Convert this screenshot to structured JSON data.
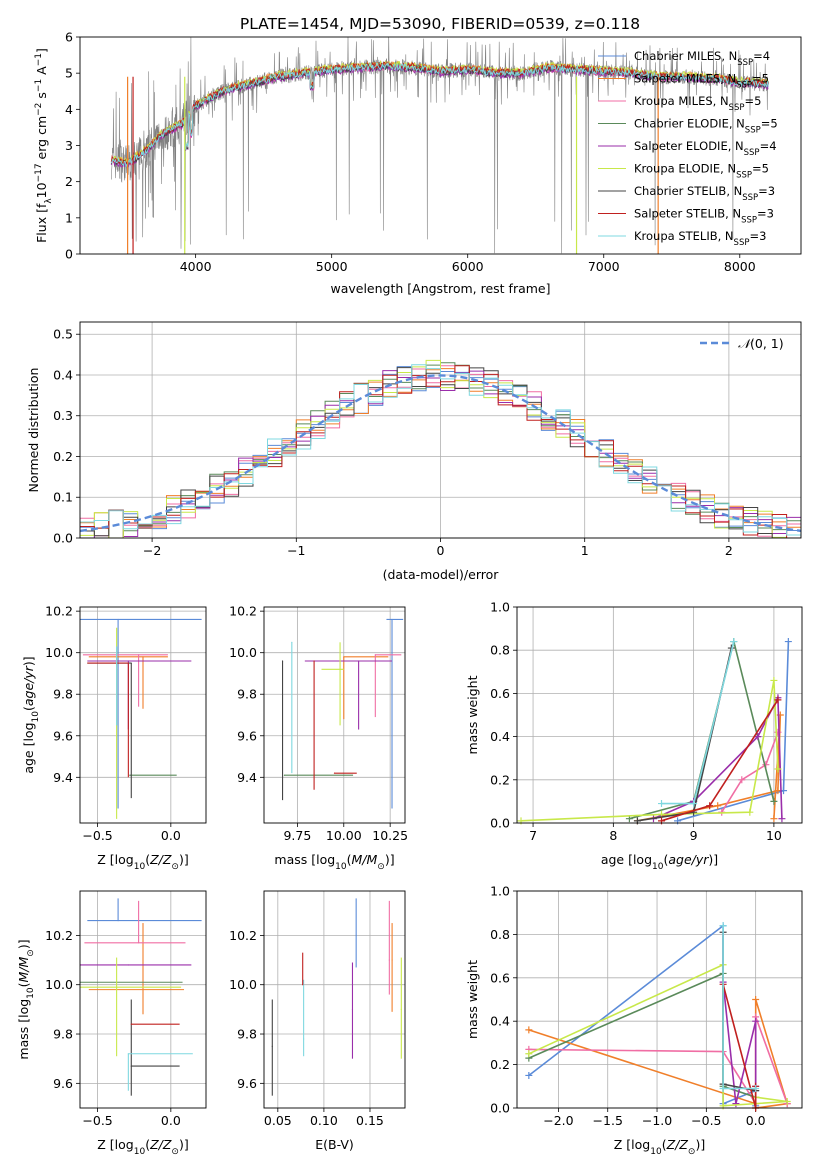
{
  "figure": {
    "title": "PLATE=1454, MJD=53090, FIBERID=0539, z=0.118"
  },
  "series": [
    {
      "key": "chab_miles",
      "label": "Chabrier MILES, N_SSP=4",
      "base": "Chabrier MILES, N",
      "sub": "SSP",
      "tail": "=4",
      "color": "#5b8bd8"
    },
    {
      "key": "salp_miles",
      "label": "Salpeter MILES, N_SSP=5",
      "base": "Salpeter MILES, N",
      "sub": "SSP",
      "tail": "=5",
      "color": "#f07f2a"
    },
    {
      "key": "krou_miles",
      "label": "Kroupa MILES, N_SSP=5",
      "base": "Kroupa MILES, N",
      "sub": "SSP",
      "tail": "=5",
      "color": "#f06ea4"
    },
    {
      "key": "chab_elodie",
      "label": "Chabrier ELODIE, N_SSP=5",
      "base": "Chabrier ELODIE, N",
      "sub": "SSP",
      "tail": "=5",
      "color": "#5a8a5a"
    },
    {
      "key": "salp_elodie",
      "label": "Salpeter ELODIE, N_SSP=4",
      "base": "Salpeter ELODIE, N",
      "sub": "SSP",
      "tail": "=4",
      "color": "#9a2eaa"
    },
    {
      "key": "krou_elodie",
      "label": "Kroupa ELODIE, N_SSP=5",
      "base": "Kroupa ELODIE, N",
      "sub": "SSP",
      "tail": "=5",
      "color": "#c8e84a"
    },
    {
      "key": "chab_stelib",
      "label": "Chabrier STELIB, N_SSP=3",
      "base": "Chabrier STELIB, N",
      "sub": "SSP",
      "tail": "=3",
      "color": "#444444"
    },
    {
      "key": "salp_stelib",
      "label": "Salpeter STELIB, N_SSP=3",
      "base": "Salpeter STELIB, N",
      "sub": "SSP",
      "tail": "=3",
      "color": "#c0201f"
    },
    {
      "key": "krou_stelib",
      "label": "Kroupa STELIB, N_SSP=3",
      "base": "Kroupa STELIB, N",
      "sub": "SSP",
      "tail": "=3",
      "color": "#7fd8e0"
    }
  ],
  "chart_data": [
    {
      "id": "spectrum",
      "type": "line",
      "xlabel": "wavelength [Angstrom, rest frame]",
      "ylabel": "Flux [f_λ 10^-17 erg cm^-2 s^-1 A^-1]",
      "ylabel_parts": {
        "a": "Flux [f",
        "a_sub": "λ",
        "b": "10",
        "b_sup": "−17",
        "c": " erg cm",
        "c_sup": "−2",
        "d": " s",
        "d_sup": "−1",
        "e": " A",
        "e_sup": "−1",
        "f": "]"
      },
      "xlim": [
        3150,
        8450
      ],
      "ylim": [
        0,
        6
      ],
      "xticks": [
        4000,
        5000,
        6000,
        7000,
        8000
      ],
      "yticks": [
        0,
        1,
        2,
        3,
        4,
        5,
        6
      ],
      "grid": false,
      "legend": "upper right",
      "data_color": "#808080",
      "continuum": {
        "x": [
          3380,
          3500,
          3650,
          3750,
          3900,
          4000,
          4200,
          4400,
          4600,
          4800,
          5000,
          5200,
          5400,
          5600,
          5800,
          6000,
          6200,
          6400,
          6600,
          6800,
          7000,
          7200,
          7400,
          7600,
          7800,
          8000,
          8200
        ],
        "y": [
          2.6,
          2.5,
          2.9,
          3.3,
          3.6,
          4.1,
          4.5,
          4.7,
          4.9,
          5.0,
          5.1,
          5.15,
          5.2,
          5.15,
          5.05,
          5.1,
          5.0,
          5.0,
          5.15,
          5.1,
          5.05,
          5.0,
          4.9,
          4.9,
          4.85,
          4.75,
          4.7
        ]
      },
      "wavelength_range": [
        3380,
        8210
      ]
    },
    {
      "id": "residuals",
      "type": "histogram",
      "xlabel": "(data-model)/error",
      "ylabel": "Normed distribution",
      "xlim": [
        -2.5,
        2.5
      ],
      "ylim": [
        0,
        0.53
      ],
      "xticks": [
        -2,
        -1,
        0,
        1,
        2
      ],
      "yticks": [
        0.0,
        0.1,
        0.2,
        0.3,
        0.4,
        0.5
      ],
      "grid": true,
      "legend": "upper right",
      "reference": {
        "label": "N(0,1)",
        "label_italic": "𝒩",
        "label_rest": "(0, 1)",
        "color": "#5b8bd8",
        "mean": 0,
        "sigma": 1
      },
      "bin_width": 0.1
    },
    {
      "id": "age_vs_Z",
      "type": "scatter",
      "xlabel": "Z [log10(Z/Z⊙)]",
      "ylabel": "age [log10(age/yr)]",
      "xlim": [
        -0.62,
        0.24
      ],
      "ylim": [
        9.18,
        10.22
      ],
      "xticks": [
        -0.5,
        0.0
      ],
      "xticklabels": [
        "−0.5",
        "0.0"
      ],
      "yticks": [
        9.4,
        9.6,
        9.8,
        10.0,
        10.2
      ],
      "grid": true,
      "points": [
        {
          "series": "chab_miles",
          "x": -0.36,
          "xerr": [
            0.59,
            0.57
          ],
          "y": 10.16,
          "yerr": [
            0.91,
            0.0
          ]
        },
        {
          "series": "salp_miles",
          "x": -0.19,
          "xerr": [
            0.37,
            0.17
          ],
          "y": 9.98,
          "yerr": [
            0.25,
            0.0
          ]
        },
        {
          "series": "krou_miles",
          "x": -0.22,
          "xerr": [
            0.38,
            0.2
          ],
          "y": 9.99,
          "yerr": [
            0.25,
            0.0
          ]
        },
        {
          "series": "chab_elodie",
          "x": -0.28,
          "xerr": [
            0.0,
            0.32
          ],
          "y": 9.41,
          "yerr": [
            0.0,
            0.0
          ]
        },
        {
          "series": "salp_elodie",
          "x": -0.29,
          "xerr": [
            0.28,
            0.43
          ],
          "y": 9.96,
          "yerr": [
            0.33,
            0.0
          ]
        },
        {
          "series": "krou_elodie",
          "x": -0.37,
          "xerr": [
            0.0,
            0.0
          ],
          "y": 9.92,
          "yerr": [
            0.72,
            0.2
          ]
        },
        {
          "series": "chab_stelib",
          "x": -0.27,
          "xerr": [
            0.3,
            0.0
          ],
          "y": 9.95,
          "yerr": [
            0.65,
            0.0
          ]
        },
        {
          "series": "salp_stelib",
          "x": -0.29,
          "xerr": [
            0.28,
            0.0
          ],
          "y": 9.95,
          "yerr": [
            0.55,
            0.0
          ]
        },
        {
          "series": "krou_stelib",
          "x": -0.37,
          "xerr": [
            0.0,
            0.0
          ],
          "y": 9.95,
          "yerr": [
            0.3,
            0.08
          ]
        }
      ]
    },
    {
      "id": "age_vs_mass",
      "type": "scatter",
      "xlabel": "mass [log10(M/M⊙)]",
      "xlim": [
        9.57,
        10.33
      ],
      "ylim": [
        9.18,
        10.22
      ],
      "xticks": [
        9.75,
        10.0,
        10.25
      ],
      "xticklabels": [
        "9.75",
        "10.00",
        "10.25"
      ],
      "yticks": [
        9.4,
        9.6,
        9.8,
        10.0,
        10.2
      ],
      "grid": true,
      "points": [
        {
          "series": "chab_miles",
          "x": 10.26,
          "xerr": [
            0.03,
            0.06
          ],
          "y": 10.16,
          "yerr": [
            0.91,
            0.0
          ]
        },
        {
          "series": "salp_miles",
          "x": 10.0,
          "xerr": [
            0.0,
            0.24
          ],
          "y": 9.98,
          "yerr": [
            0.3,
            0.0
          ]
        },
        {
          "series": "krou_miles",
          "x": 10.17,
          "xerr": [
            0.0,
            0.14
          ],
          "y": 9.99,
          "yerr": [
            0.3,
            0.0
          ]
        },
        {
          "series": "chab_elodie",
          "x": 9.68,
          "xerr": [
            0.0,
            0.37
          ],
          "y": 9.41,
          "yerr": [
            0.0,
            0.0
          ]
        },
        {
          "series": "salp_elodie",
          "x": 10.08,
          "xerr": [
            0.29,
            0.18
          ],
          "y": 9.96,
          "yerr": [
            0.33,
            0.0
          ]
        },
        {
          "series": "krou_elodie",
          "x": 9.98,
          "xerr": [
            0.1,
            0.02
          ],
          "y": 9.92,
          "yerr": [
            0.27,
            0.13
          ]
        },
        {
          "series": "chab_stelib",
          "x": 9.67,
          "xerr": [
            0.0,
            0.0
          ],
          "y": 9.96,
          "yerr": [
            0.67,
            0.0
          ]
        },
        {
          "series": "salp_stelib",
          "x": 9.84,
          "xerr": [
            0.0,
            0.0
          ],
          "y": 9.96,
          "yerr": [
            0.62,
            0.0
          ]
        },
        {
          "series": "krou_stelib",
          "x": 9.72,
          "xerr": [
            0.0,
            0.0
          ],
          "y": 10.05,
          "yerr": [
            0.63,
            0.0
          ]
        },
        {
          "series": "salp_stelib",
          "x": 9.95,
          "xerr": [
            0.0,
            0.12
          ],
          "y": 9.42,
          "yerr": [
            0.0,
            0.0
          ]
        }
      ]
    },
    {
      "id": "weights_vs_age",
      "type": "line",
      "xlabel": "age [log10(age/yr)]",
      "ylabel": "mass weight",
      "xlim": [
        6.8,
        10.35
      ],
      "ylim": [
        0,
        1.0
      ],
      "xticks": [
        7,
        8,
        9,
        10
      ],
      "yticks": [
        0.0,
        0.2,
        0.4,
        0.6,
        0.8,
        1.0
      ],
      "grid": true,
      "series_points": [
        {
          "series": "chab_miles",
          "x": [
            8.8,
            10.12,
            10.18
          ],
          "y": [
            0.01,
            0.15,
            0.84
          ]
        },
        {
          "series": "salp_miles",
          "x": [
            8.3,
            9.3,
            10.05,
            10.08,
            10.0
          ],
          "y": [
            0.01,
            0.08,
            0.15,
            0.5,
            0.02
          ]
        },
        {
          "series": "krou_miles",
          "x": [
            9.35,
            9.6,
            9.9,
            10.05
          ],
          "y": [
            0.05,
            0.2,
            0.27,
            0.42
          ]
        },
        {
          "series": "chab_elodie",
          "x": [
            8.2,
            9.0,
            9.5,
            10.0
          ],
          "y": [
            0.02,
            0.1,
            0.84,
            0.1
          ]
        },
        {
          "series": "salp_elodie",
          "x": [
            8.5,
            9.0,
            9.8,
            10.05,
            10.1
          ],
          "y": [
            0.02,
            0.1,
            0.4,
            0.58,
            0.02
          ]
        },
        {
          "series": "krou_elodie",
          "x": [
            6.85,
            8.6,
            9.7,
            10.0,
            10.05
          ],
          "y": [
            0.01,
            0.04,
            0.05,
            0.66,
            0.25
          ]
        },
        {
          "series": "chab_stelib",
          "x": [
            8.3,
            9.0,
            9.47
          ],
          "y": [
            0.01,
            0.05,
            0.81
          ]
        },
        {
          "series": "salp_stelib",
          "x": [
            8.6,
            9.2,
            10.05
          ],
          "y": [
            0.01,
            0.08,
            0.57
          ]
        },
        {
          "series": "krou_stelib",
          "x": [
            8.6,
            9.0,
            9.5
          ],
          "y": [
            0.09,
            0.09,
            0.84
          ]
        }
      ]
    },
    {
      "id": "mass_vs_Z",
      "type": "scatter",
      "xlabel": "Z [log10(Z/Z⊙)]",
      "ylabel": "mass [log10(M/M⊙)]",
      "xlim": [
        -0.62,
        0.24
      ],
      "ylim": [
        9.5,
        10.38
      ],
      "xticks": [
        -0.5,
        0.0
      ],
      "xticklabels": [
        "−0.5",
        "0.0"
      ],
      "yticks": [
        9.6,
        9.8,
        10.0,
        10.2
      ],
      "grid": true,
      "points": [
        {
          "series": "chab_miles",
          "x": -0.36,
          "xerr": [
            0.21,
            0.57
          ],
          "y": 10.26,
          "yerr": [
            0.0,
            0.09
          ]
        },
        {
          "series": "salp_miles",
          "x": -0.19,
          "xerr": [
            0.37,
            0.28
          ],
          "y": 9.98,
          "yerr": [
            0.1,
            0.27
          ]
        },
        {
          "series": "krou_miles",
          "x": -0.22,
          "xerr": [
            0.37,
            0.32
          ],
          "y": 10.17,
          "yerr": [
            0.0,
            0.17
          ]
        },
        {
          "series": "chab_elodie",
          "x": -0.37,
          "xerr": [
            0.25,
            0.45
          ],
          "y": 10.01,
          "yerr": [
            0.0,
            0.0
          ]
        },
        {
          "series": "salp_elodie",
          "x": -0.29,
          "xerr": [
            0.33,
            0.43
          ],
          "y": 10.08,
          "yerr": [
            0.0,
            0.0
          ]
        },
        {
          "series": "krou_elodie",
          "x": -0.37,
          "xerr": [
            0.25,
            0.44
          ],
          "y": 9.99,
          "yerr": [
            0.28,
            0.12
          ]
        },
        {
          "series": "chab_stelib",
          "x": -0.27,
          "xerr": [
            0.0,
            0.33
          ],
          "y": 9.67,
          "yerr": [
            0.12,
            0.27
          ]
        },
        {
          "series": "salp_stelib",
          "x": -0.27,
          "xerr": [
            0.0,
            0.33
          ],
          "y": 9.84,
          "yerr": [
            0.0,
            0.0
          ]
        },
        {
          "series": "krou_stelib",
          "x": -0.29,
          "xerr": [
            0.0,
            0.44
          ],
          "y": 9.72,
          "yerr": [
            0.15,
            0.0
          ]
        }
      ]
    },
    {
      "id": "ebv",
      "type": "scatter",
      "xlabel": "E(B-V)",
      "xlim": [
        0.035,
        0.188
      ],
      "ylim": [
        9.5,
        10.38
      ],
      "xticks": [
        0.05,
        0.1,
        0.15
      ],
      "xticklabels": [
        "0.05",
        "0.10",
        "0.15"
      ],
      "yticks": [
        9.6,
        9.8,
        10.0,
        10.2
      ],
      "grid": true,
      "points": [
        {
          "series": "chab_stelib",
          "x": 0.044,
          "y": 9.75,
          "yerr": [
            0.2,
            0.19
          ]
        },
        {
          "series": "krou_stelib",
          "x": 0.078,
          "y": 9.78,
          "yerr": [
            0.07,
            0.24
          ]
        },
        {
          "series": "salp_stelib",
          "x": 0.077,
          "y": 10.0,
          "yerr": [
            0.0,
            0.13
          ]
        },
        {
          "series": "salp_elodie",
          "x": 0.131,
          "y": 9.9,
          "yerr": [
            0.2,
            0.19
          ]
        },
        {
          "series": "chab_miles",
          "x": 0.135,
          "y": 10.2,
          "yerr": [
            0.13,
            0.15
          ]
        },
        {
          "series": "krou_miles",
          "x": 0.171,
          "y": 10.1,
          "yerr": [
            0.14,
            0.24
          ]
        },
        {
          "series": "salp_miles",
          "x": 0.174,
          "y": 10.1,
          "yerr": [
            0.21,
            0.15
          ]
        },
        {
          "series": "krou_elodie",
          "x": 0.184,
          "y": 9.9,
          "yerr": [
            0.2,
            0.21
          ]
        }
      ]
    },
    {
      "id": "weights_vs_Z",
      "type": "line",
      "xlabel": "Z [log10(Z/Z⊙)]",
      "ylabel": "mass weight",
      "xlim": [
        -2.42,
        0.47
      ],
      "ylim": [
        0,
        1.0
      ],
      "xticks": [
        -2.0,
        -1.5,
        -1.0,
        -0.5,
        0.0
      ],
      "xticklabels": [
        "−2.0",
        "−1.5",
        "−1.0",
        "−0.5",
        "0.0"
      ],
      "yticks": [
        0.0,
        0.2,
        0.4,
        0.6,
        0.8,
        1.0
      ],
      "grid": true,
      "series_points": [
        {
          "series": "chab_miles",
          "x": [
            -2.3,
            -0.33,
            -0.33,
            0.0,
            0.0
          ],
          "y": [
            0.15,
            0.84,
            0.02,
            0.08,
            0.01
          ]
        },
        {
          "series": "salp_miles",
          "x": [
            -2.3,
            0.0,
            0.0,
            0.32,
            0.0
          ],
          "y": [
            0.36,
            0.02,
            0.5,
            0.02,
            0.0
          ]
        },
        {
          "series": "krou_miles",
          "x": [
            -2.3,
            -0.33,
            0.0,
            0.0,
            0.32
          ],
          "y": [
            0.27,
            0.26,
            0.02,
            0.42,
            0.02
          ]
        },
        {
          "series": "chab_elodie",
          "x": [
            -2.3,
            -0.33,
            -0.33,
            0.0
          ],
          "y": [
            0.23,
            0.62,
            0.1,
            0.05
          ]
        },
        {
          "series": "salp_elodie",
          "x": [
            -0.33,
            -0.2,
            0.0,
            0.0
          ],
          "y": [
            0.58,
            0.02,
            0.4,
            0.1
          ]
        },
        {
          "series": "krou_elodie",
          "x": [
            -2.3,
            -0.33,
            -0.33,
            0.32,
            0.0
          ],
          "y": [
            0.25,
            0.66,
            0.01,
            0.03,
            0.05
          ]
        },
        {
          "series": "chab_stelib",
          "x": [
            -0.33,
            -0.33,
            0.0
          ],
          "y": [
            0.81,
            0.11,
            0.08
          ]
        },
        {
          "series": "salp_stelib",
          "x": [
            -0.33,
            0.0,
            0.0
          ],
          "y": [
            0.57,
            0.0,
            0.1
          ]
        },
        {
          "series": "krou_stelib",
          "x": [
            -0.33,
            -0.33,
            0.0
          ],
          "y": [
            0.84,
            0.09,
            0.09
          ]
        }
      ]
    }
  ]
}
